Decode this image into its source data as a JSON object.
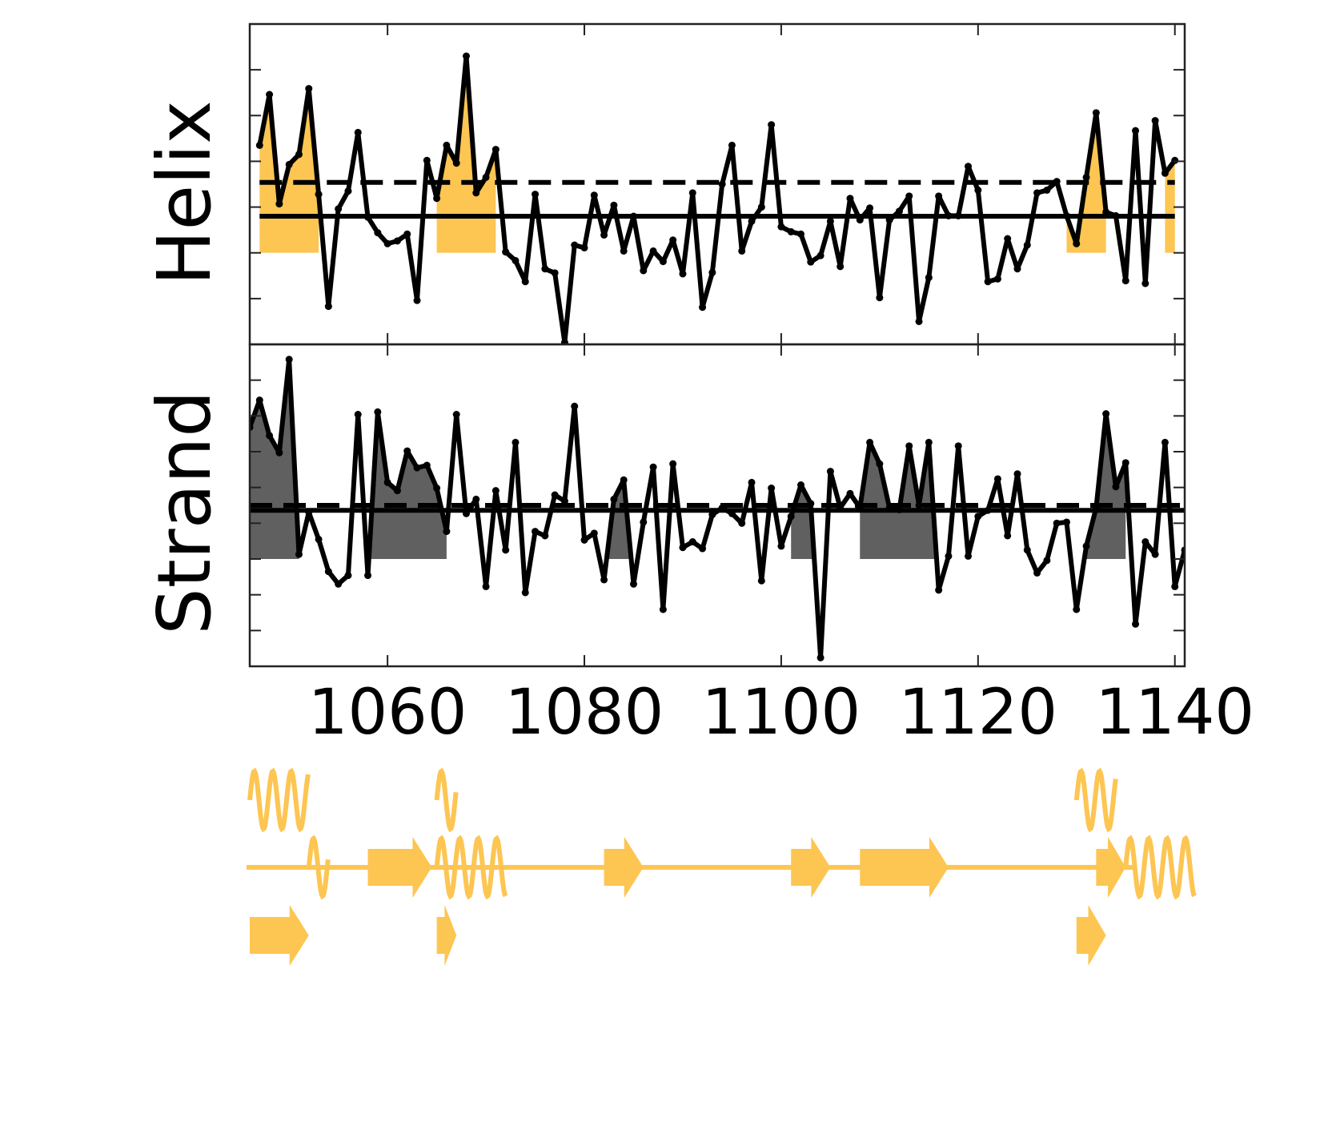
{
  "chart_data": [
    {
      "type": "line",
      "ylabel": "Helix",
      "xlim": [
        1046,
        1141
      ],
      "xticks": [
        1060,
        1080,
        1100,
        1120,
        1140
      ],
      "ylim": [
        0,
        7
      ],
      "yticks": [
        1,
        2,
        3,
        4,
        5,
        6
      ],
      "x": [
        1047,
        1048,
        1049,
        1050,
        1051,
        1052,
        1053,
        1054,
        1055,
        1056,
        1057,
        1058,
        1059,
        1060,
        1061,
        1062,
        1063,
        1064,
        1065,
        1066,
        1067,
        1068,
        1069,
        1070,
        1071,
        1072,
        1073,
        1074,
        1075,
        1076,
        1077,
        1078,
        1079,
        1080,
        1081,
        1082,
        1083,
        1084,
        1085,
        1086,
        1087,
        1088,
        1089,
        1090,
        1091,
        1092,
        1093,
        1094,
        1095,
        1096,
        1097,
        1098,
        1099,
        1100,
        1101,
        1102,
        1103,
        1104,
        1105,
        1106,
        1107,
        1108,
        1109,
        1110,
        1111,
        1112,
        1113,
        1114,
        1115,
        1116,
        1117,
        1118,
        1119,
        1120,
        1121,
        1122,
        1123,
        1124,
        1125,
        1126,
        1127,
        1128,
        1129,
        1130,
        1131,
        1132,
        1133,
        1134,
        1135,
        1136,
        1137,
        1138,
        1139,
        1140
      ],
      "values": [
        4.35,
        5.46,
        3.07,
        3.93,
        4.15,
        5.59,
        3.28,
        0.83,
        2.96,
        3.35,
        4.63,
        2.78,
        2.44,
        2.2,
        2.26,
        2.41,
        0.96,
        4.02,
        3.19,
        4.35,
        3.96,
        6.3,
        3.31,
        3.65,
        4.26,
        2.02,
        1.83,
        1.37,
        3.28,
        1.65,
        1.56,
        0.04,
        2.17,
        2.11,
        3.26,
        2.39,
        3.04,
        2.04,
        2.8,
        1.61,
        2.04,
        1.81,
        2.28,
        1.54,
        3.31,
        0.81,
        1.57,
        3.5,
        4.35,
        2.04,
        2.69,
        3.0,
        4.8,
        2.57,
        2.46,
        2.41,
        1.8,
        1.94,
        2.69,
        1.7,
        3.19,
        2.72,
        2.98,
        1.02,
        2.72,
        2.91,
        3.24,
        0.5,
        1.46,
        3.24,
        2.81,
        2.81,
        3.89,
        3.37,
        1.37,
        1.43,
        2.31,
        1.65,
        2.17,
        3.31,
        3.37,
        3.56,
        2.81,
        2.2,
        3.65,
        5.06,
        2.89,
        2.81,
        1.39,
        4.67,
        1.33,
        4.89,
        3.74,
        4.02
      ],
      "color": "#000000",
      "threshold": 2.8,
      "dashed": 3.54,
      "fill_base": 2,
      "fill_color": "#fdc552",
      "regions": [
        [
          1047,
          1053
        ],
        [
          1065,
          1071
        ],
        [
          1129,
          1133
        ],
        [
          1139,
          1141
        ]
      ]
    },
    {
      "type": "line",
      "ylabel": "Strand",
      "xlim": [
        1046,
        1141
      ],
      "xticks": [
        1060,
        1080,
        1100,
        1120,
        1140
      ],
      "xticklabels": [
        1060,
        1080,
        1100,
        1120,
        1140
      ],
      "ylim": [
        0,
        9
      ],
      "yticks": [
        1,
        2,
        3,
        4,
        5,
        6,
        7,
        8
      ],
      "x": [
        1046,
        1047,
        1048,
        1049,
        1050,
        1051,
        1052,
        1053,
        1054,
        1055,
        1056,
        1057,
        1058,
        1059,
        1060,
        1061,
        1062,
        1063,
        1064,
        1065,
        1066,
        1067,
        1068,
        1069,
        1070,
        1071,
        1072,
        1073,
        1074,
        1075,
        1076,
        1077,
        1078,
        1079,
        1080,
        1081,
        1082,
        1083,
        1084,
        1085,
        1086,
        1087,
        1088,
        1089,
        1090,
        1091,
        1092,
        1093,
        1094,
        1095,
        1096,
        1097,
        1098,
        1099,
        1100,
        1101,
        1102,
        1103,
        1104,
        1105,
        1106,
        1107,
        1108,
        1109,
        1110,
        1111,
        1112,
        1113,
        1114,
        1115,
        1116,
        1117,
        1118,
        1119,
        1120,
        1121,
        1122,
        1123,
        1124,
        1125,
        1126,
        1127,
        1128,
        1129,
        1130,
        1131,
        1132,
        1133,
        1134,
        1135,
        1136,
        1137,
        1138,
        1139,
        1140,
        1141
      ],
      "values": [
        6.68,
        7.44,
        6.45,
        5.97,
        8.58,
        3.13,
        4.31,
        3.55,
        2.65,
        2.3,
        2.54,
        7.04,
        2.54,
        7.11,
        5.14,
        4.91,
        6.02,
        5.55,
        5.62,
        4.98,
        3.77,
        7.04,
        4.27,
        4.67,
        2.23,
        4.91,
        3.25,
        6.26,
        2.06,
        3.77,
        3.65,
        4.79,
        4.62,
        7.27,
        3.53,
        3.72,
        2.42,
        4.67,
        5.21,
        2.3,
        4.03,
        5.57,
        1.59,
        5.66,
        3.32,
        3.48,
        3.29,
        4.24,
        4.43,
        4.27,
        4.0,
        5.14,
        2.39,
        4.98,
        3.36,
        4.19,
        5.07,
        4.55,
        0.24,
        5.45,
        4.43,
        4.83,
        4.43,
        6.26,
        5.66,
        4.43,
        4.38,
        6.16,
        4.5,
        6.26,
        2.13,
        3.08,
        6.16,
        3.08,
        4.19,
        4.36,
        5.24,
        3.65,
        5.38,
        3.25,
        2.61,
        2.96,
        4.0,
        4.03,
        1.59,
        3.36,
        4.43,
        7.06,
        5.02,
        5.69,
        1.18,
        3.48,
        3.13,
        6.26,
        2.23,
        3.25
      ],
      "color": "#000000",
      "threshold": 4.36,
      "dashed": 4.5,
      "fill_base": 3,
      "fill_color": "#606060",
      "regions": [
        [
          1046,
          1051
        ],
        [
          1058,
          1066
        ],
        [
          1082,
          1085
        ],
        [
          1101,
          1104
        ],
        [
          1108,
          1116
        ],
        [
          1131,
          1135
        ]
      ]
    }
  ],
  "secondary_structure": {
    "type": "track",
    "color": "#fdc552",
    "rows": [
      [
        {
          "kind": "helix",
          "start": 1046,
          "end": 1052
        },
        {
          "kind": "helix",
          "start": 1065,
          "end": 1067
        },
        {
          "kind": "helix",
          "start": 1130,
          "end": 1134
        }
      ],
      [
        {
          "kind": "coil",
          "start": 1046,
          "end": 1136
        },
        {
          "kind": "helix",
          "start": 1052,
          "end": 1054
        },
        {
          "kind": "strand",
          "start": 1058,
          "end": 1064.5
        },
        {
          "kind": "helix",
          "start": 1065,
          "end": 1072
        },
        {
          "kind": "strand",
          "start": 1082,
          "end": 1086
        },
        {
          "kind": "strand",
          "start": 1101,
          "end": 1105
        },
        {
          "kind": "strand",
          "start": 1108,
          "end": 1117
        },
        {
          "kind": "strand",
          "start": 1132,
          "end": 1135
        },
        {
          "kind": "helix",
          "start": 1135,
          "end": 1142
        }
      ],
      [
        {
          "kind": "strand",
          "start": 1046,
          "end": 1052
        },
        {
          "kind": "strand",
          "start": 1065,
          "end": 1067
        },
        {
          "kind": "strand",
          "start": 1130,
          "end": 1133
        }
      ]
    ]
  }
}
